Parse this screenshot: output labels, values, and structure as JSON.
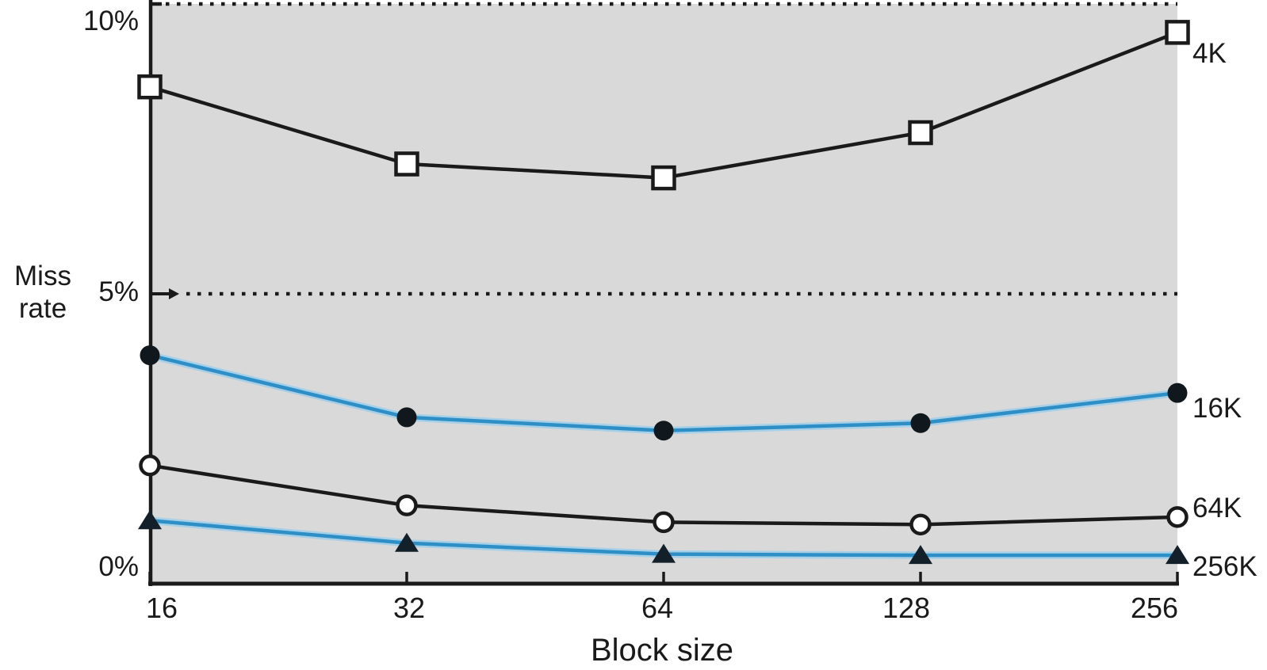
{
  "chart_data": {
    "type": "line",
    "xlabel": "Block size",
    "ylabel": "Miss rate",
    "ylabel_lines": [
      "Miss",
      "rate"
    ],
    "x": [
      16,
      32,
      64,
      128,
      256
    ],
    "x_tick_labels": [
      "16",
      "32",
      "64",
      "128",
      "256"
    ],
    "y_tick_labels": [
      "0%",
      "5%",
      "10%"
    ],
    "y_tick_values_pct": [
      0,
      5,
      10
    ],
    "ylim_pct": [
      0,
      10
    ],
    "grid": "dotted horizontal lines at 5% and 10%",
    "legend_position": "right of last data point",
    "plot_bg_color": "#d9d9d9",
    "axis_color": "#1a1a1a",
    "blue_line_color": "#2e8ec6",
    "blue_line_halo_color": "#a6d0e8",
    "series": [
      {
        "name": "4K",
        "marker": "open-square",
        "line_color": "#1a1a1a",
        "values_pct": [
          8.57,
          7.24,
          7.0,
          7.78,
          9.51
        ]
      },
      {
        "name": "16K",
        "marker": "filled-circle",
        "line_color": "#2e8ec6",
        "values_pct": [
          3.94,
          2.87,
          2.64,
          2.77,
          3.29
        ]
      },
      {
        "name": "64K",
        "marker": "open-circle",
        "line_color": "#1a1a1a",
        "values_pct": [
          2.04,
          1.35,
          1.06,
          1.02,
          1.15
        ]
      },
      {
        "name": "256K",
        "marker": "filled-triangle",
        "line_color": "#2e8ec6",
        "values_pct": [
          1.09,
          0.7,
          0.51,
          0.49,
          0.49
        ]
      }
    ]
  }
}
